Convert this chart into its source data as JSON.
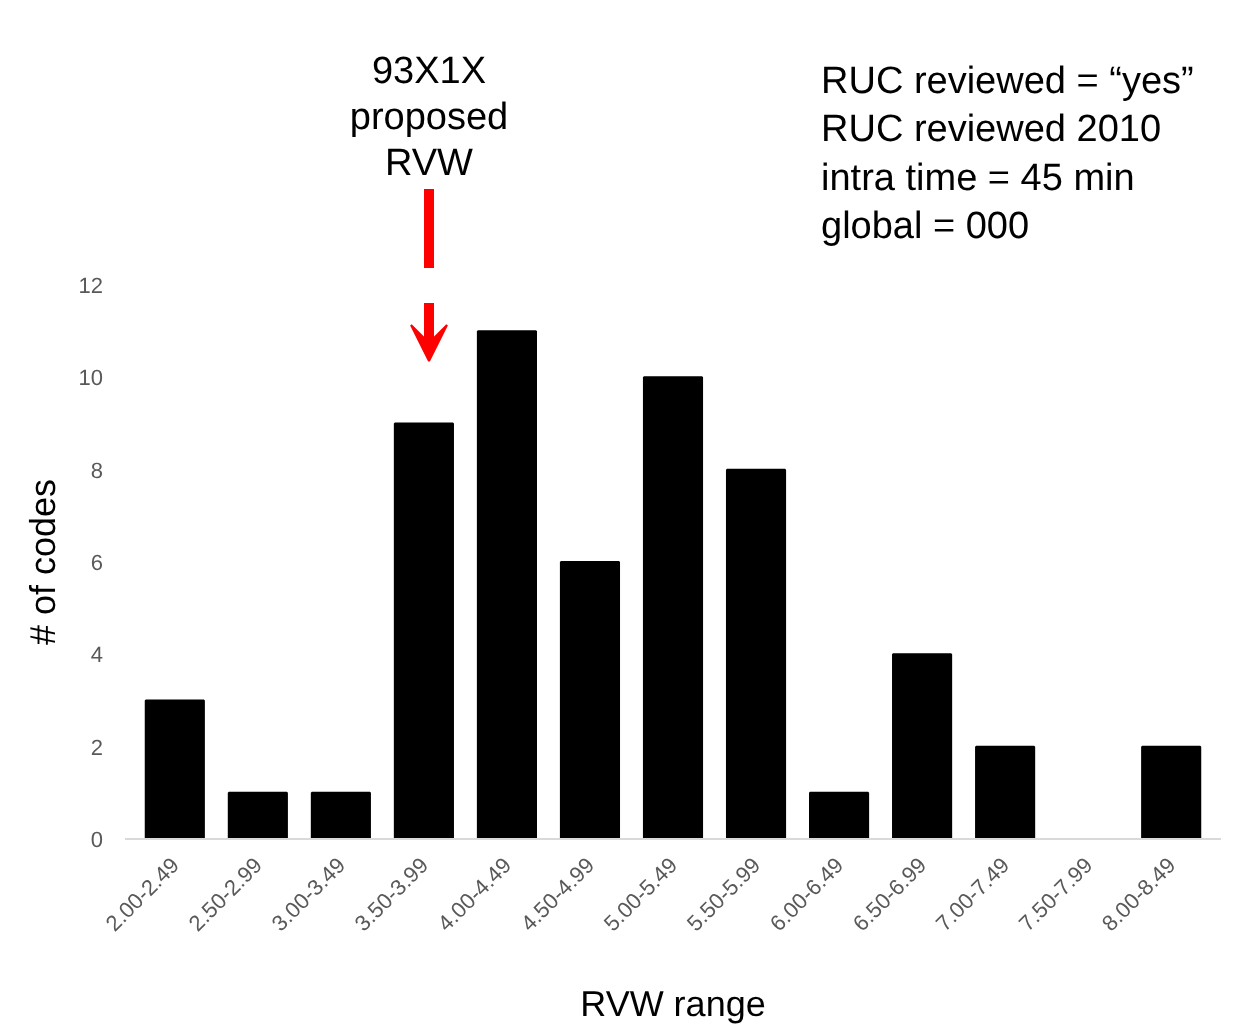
{
  "chart_data": {
    "type": "bar",
    "categories": [
      "2.00-2.49",
      "2.50-2.99",
      "3.00-3.49",
      "3.50-3.99",
      "4.00-4.49",
      "4.50-4.99",
      "5.00-5.49",
      "5.50-5.99",
      "6.00-6.49",
      "6.50-6.99",
      "7.00-7.49",
      "7.50-7.99",
      "8.00-8.49"
    ],
    "values": [
      3,
      1,
      1,
      9,
      11,
      6,
      10,
      8,
      1,
      4,
      2,
      0,
      2
    ],
    "color": "#000000",
    "xlabel": "RVW range",
    "ylabel": "# of codes",
    "ylim": [
      0,
      12
    ],
    "yticks": [
      0,
      2,
      4,
      6,
      8,
      10,
      12
    ],
    "grid": false,
    "annotations": [
      "93X1X\nproposed\nRVW",
      "RUC reviewed = “yes”\nRUC reviewed 2010\nintra time = 45 min\nglobal = 000"
    ]
  }
}
